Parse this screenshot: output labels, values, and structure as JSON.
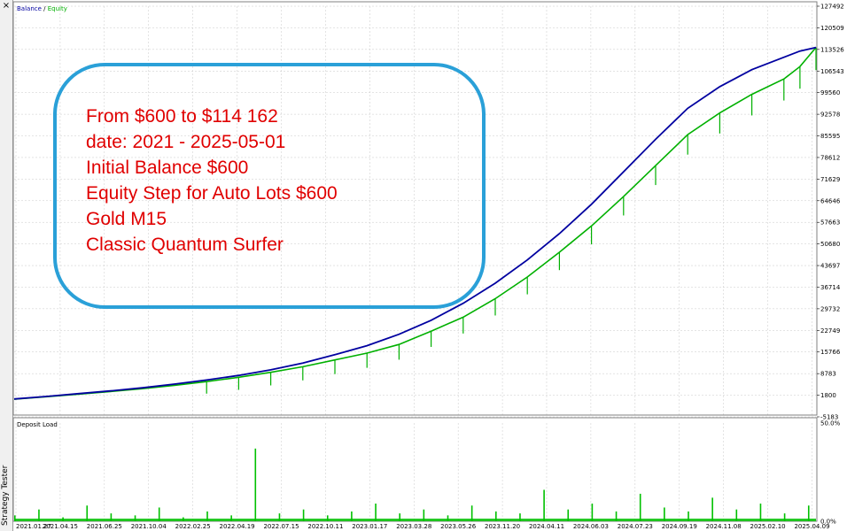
{
  "panel": {
    "close_label": "×",
    "side_title": "Strategy Tester"
  },
  "annotation": {
    "lines": [
      "From $600 to $114 162",
      "date: 2021 - 2025-05-01",
      "Initial Balance $600",
      "Equity Step for Auto Lots $600",
      "Gold M15",
      "Classic Quantum Surfer"
    ]
  },
  "colors": {
    "balance": "#0000a0",
    "equity": "#00b000",
    "deposit_load": "#00c000",
    "annotation_text": "#e00000",
    "annotation_border": "#2aa0d8",
    "grid": "#c8c8c8"
  },
  "chart_data": [
    {
      "type": "line",
      "legend": {
        "balance_label": "Balance",
        "separator": " / ",
        "equity_label": "Equity",
        "position": "top-left"
      },
      "y_ticks": [
        "127492",
        "120509",
        "113526",
        "106543",
        "99560",
        "92578",
        "85595",
        "78612",
        "71629",
        "64646",
        "57663",
        "50680",
        "43697",
        "36714",
        "29732",
        "22749",
        "15766",
        "8783",
        "1800",
        "-5183"
      ],
      "ylim": [
        -5183,
        127492
      ],
      "x_ticks": [
        "2021.01.27",
        "2021.04.15",
        "2021.06.25",
        "2021.10.04",
        "2022.02.25",
        "2022.04.19",
        "2022.07.15",
        "2022.10.11",
        "2023.01.17",
        "2023.03.28",
        "2023.05.26",
        "2023.11.20",
        "2024.04.11",
        "2024.06.03",
        "2024.07.23",
        "2024.09.19",
        "2024.11.08",
        "2025.02.10",
        "2025.04.09"
      ],
      "grid": true,
      "series": [
        {
          "name": "Balance",
          "x": [
            0,
            4,
            8,
            12,
            16,
            20,
            24,
            28,
            32,
            36,
            40,
            44,
            48,
            52,
            56,
            60,
            64,
            68,
            72,
            76,
            80,
            84,
            88,
            92,
            96,
            98,
            100
          ],
          "y": [
            600,
            1400,
            2300,
            3200,
            4200,
            5400,
            6700,
            8200,
            10000,
            12200,
            14900,
            17800,
            21500,
            26000,
            31500,
            38000,
            45500,
            54000,
            63500,
            74000,
            84500,
            94500,
            101500,
            107000,
            111000,
            113000,
            114162
          ]
        },
        {
          "name": "Equity",
          "x": [
            0,
            4,
            8,
            12,
            16,
            20,
            24,
            28,
            32,
            36,
            40,
            44,
            48,
            52,
            56,
            60,
            64,
            68,
            72,
            76,
            80,
            84,
            88,
            92,
            96,
            98,
            100
          ],
          "y": [
            500,
            1300,
            2100,
            3000,
            3900,
            5000,
            6200,
            7600,
            9200,
            11000,
            13200,
            15400,
            18200,
            22500,
            27000,
            33000,
            40000,
            48000,
            56500,
            66000,
            76000,
            86000,
            93000,
            99000,
            104000,
            108000,
            114162
          ]
        }
      ]
    },
    {
      "type": "bar",
      "title": "Deposit Load",
      "y_ticks": [
        "50.0%",
        "0.0%"
      ],
      "ylim": [
        0,
        50
      ],
      "x": [
        0,
        3,
        6,
        9,
        12,
        15,
        18,
        21,
        24,
        27,
        30,
        33,
        36,
        39,
        42,
        45,
        48,
        51,
        54,
        57,
        60,
        63,
        66,
        69,
        72,
        75,
        78,
        81,
        84,
        87,
        90,
        93,
        96,
        99
      ],
      "values": [
        3,
        6,
        2,
        8,
        4,
        3,
        7,
        2,
        5,
        3,
        37,
        4,
        6,
        3,
        5,
        9,
        4,
        6,
        3,
        8,
        5,
        4,
        16,
        6,
        9,
        5,
        14,
        7,
        5,
        12,
        6,
        9,
        4,
        8
      ]
    }
  ]
}
